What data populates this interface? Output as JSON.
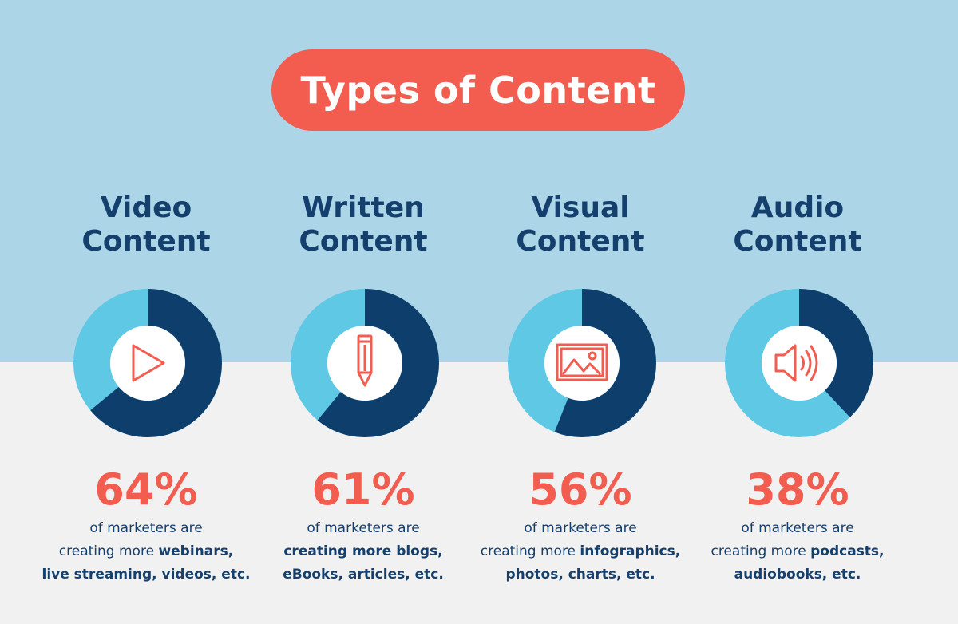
{
  "title": "Types of Content",
  "colors": {
    "top_background": "#acd6e8",
    "bottom_background": "#f1f1f2",
    "accent": "#f25d50",
    "dark_navy": "#15406e",
    "donut_dark": "#0e3f6c",
    "donut_light": "#5ec8e5"
  },
  "items": [
    {
      "heading_line1": "Video",
      "heading_line2": "Content",
      "percent": "64%",
      "fraction": 0.64,
      "icon": "play-icon",
      "line1": "of marketers are",
      "line2_regular": "creating more ",
      "line2_bold": "webinars,",
      "line3_regular": "",
      "line3_bold": "live streaming, videos, etc."
    },
    {
      "heading_line1": "Written",
      "heading_line2": "Content",
      "percent": "61%",
      "fraction": 0.61,
      "icon": "pencil-icon",
      "line1": "of marketers are",
      "line2_regular": "",
      "line2_bold": "creating more blogs,",
      "line3_regular": "",
      "line3_bold": "eBooks, articles, etc."
    },
    {
      "heading_line1": "Visual",
      "heading_line2": "Content",
      "percent": "56%",
      "fraction": 0.56,
      "icon": "image-icon",
      "line1": "of marketers are",
      "line2_regular": "creating more ",
      "line2_bold": "infographics,",
      "line3_regular": "",
      "line3_bold": "photos, charts, etc."
    },
    {
      "heading_line1": "Audio",
      "heading_line2": "Content",
      "percent": "38%",
      "fraction": 0.38,
      "icon": "speaker-icon",
      "line1": "of marketers are",
      "line2_regular": "creating more ",
      "line2_bold": "podcasts,",
      "line3_regular": "",
      "line3_bold": "audiobooks, etc."
    }
  ]
}
